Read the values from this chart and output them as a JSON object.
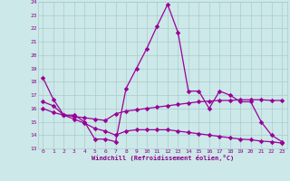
{
  "xlabel": "Windchill (Refroidissement éolien,°C)",
  "x": [
    0,
    1,
    2,
    3,
    4,
    5,
    6,
    7,
    8,
    9,
    10,
    11,
    12,
    13,
    14,
    15,
    16,
    17,
    18,
    19,
    20,
    21,
    22,
    23
  ],
  "line1": [
    18.3,
    16.7,
    15.5,
    15.5,
    15.0,
    13.7,
    13.7,
    13.5,
    17.5,
    19.0,
    20.5,
    22.2,
    23.8,
    21.7,
    17.3,
    17.3,
    16.0,
    17.3,
    17.0,
    16.5,
    16.5,
    15.0,
    14.0,
    13.5
  ],
  "line2": [
    16.0,
    15.7,
    15.5,
    15.4,
    15.3,
    15.2,
    15.1,
    15.6,
    15.8,
    15.9,
    16.0,
    16.1,
    16.2,
    16.3,
    16.4,
    16.5,
    16.55,
    16.6,
    16.6,
    16.65,
    16.65,
    16.65,
    16.6,
    16.6
  ],
  "line3": [
    16.5,
    16.2,
    15.5,
    15.2,
    14.9,
    14.5,
    14.3,
    14.0,
    14.3,
    14.4,
    14.4,
    14.4,
    14.4,
    14.3,
    14.2,
    14.1,
    14.0,
    13.9,
    13.8,
    13.7,
    13.65,
    13.55,
    13.5,
    13.4
  ],
  "line_color": "#990099",
  "bg_color": "#cce8e8",
  "grid_color": "#aacccc",
  "ylim": [
    13,
    24
  ],
  "yticks": [
    13,
    14,
    15,
    16,
    17,
    18,
    19,
    20,
    21,
    22,
    23,
    24
  ],
  "xticks": [
    0,
    1,
    2,
    3,
    4,
    5,
    6,
    7,
    8,
    9,
    10,
    11,
    12,
    13,
    14,
    15,
    16,
    17,
    18,
    19,
    20,
    21,
    22,
    23
  ],
  "tick_color": "#880088",
  "label_color": "#880088"
}
